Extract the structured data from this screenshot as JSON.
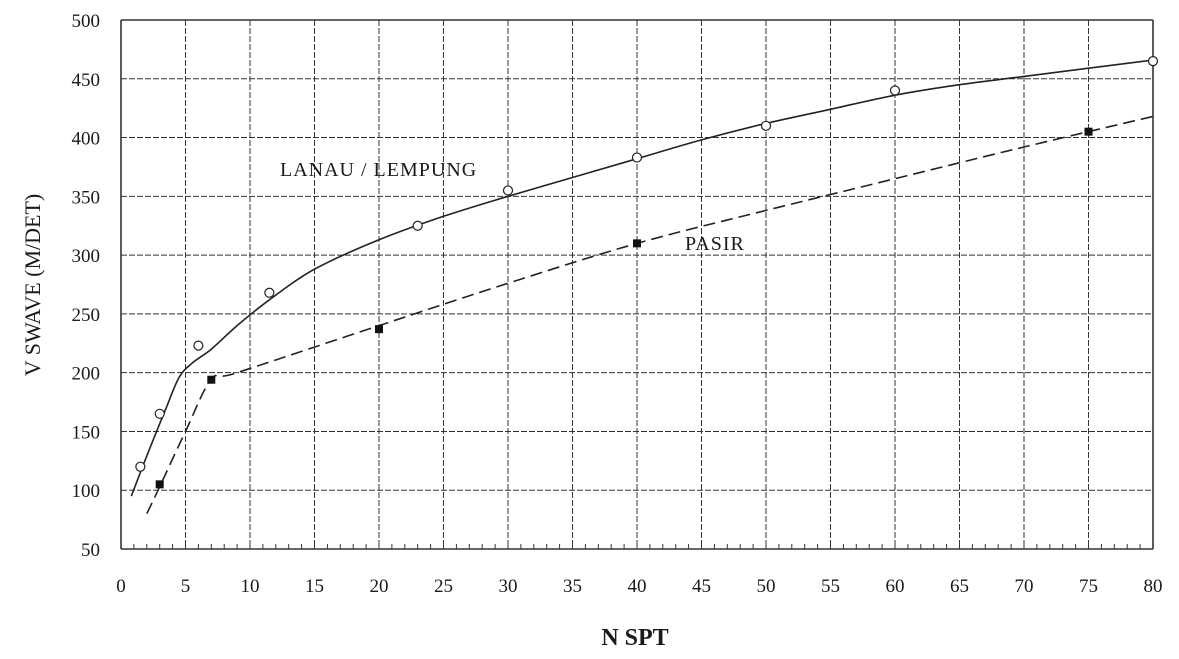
{
  "chart_data": {
    "type": "line",
    "title": "",
    "xlabel": "N SPT",
    "ylabel": "V SWAVE (M/DET)",
    "xlim": [
      0,
      80
    ],
    "ylim": [
      50,
      500
    ],
    "xticks": [
      0,
      5,
      10,
      15,
      20,
      25,
      30,
      35,
      40,
      45,
      50,
      55,
      60,
      65,
      70,
      75,
      80
    ],
    "yticks": [
      50,
      100,
      150,
      200,
      250,
      300,
      350,
      400,
      450,
      500
    ],
    "grid": true,
    "series": [
      {
        "name": "LANAU / LEMPUNG",
        "line_style": "solid",
        "marker": "open-circle",
        "points": [
          [
            1.5,
            120
          ],
          [
            3,
            165
          ],
          [
            6,
            223
          ],
          [
            11.5,
            268
          ],
          [
            23,
            325
          ],
          [
            30,
            355
          ],
          [
            40,
            383
          ],
          [
            50,
            410
          ],
          [
            60,
            440
          ],
          [
            80,
            465
          ]
        ],
        "curve": [
          [
            0.8,
            95
          ],
          [
            1.5,
            115
          ],
          [
            2.5,
            143
          ],
          [
            3.5,
            170
          ],
          [
            4.5,
            196
          ],
          [
            5.5,
            208
          ],
          [
            7,
            220
          ],
          [
            9,
            240
          ],
          [
            11.5,
            262
          ],
          [
            15,
            288
          ],
          [
            20,
            313
          ],
          [
            25,
            333
          ],
          [
            30,
            350
          ],
          [
            35,
            366
          ],
          [
            40,
            382
          ],
          [
            45,
            398
          ],
          [
            50,
            412
          ],
          [
            55,
            424
          ],
          [
            60,
            436
          ],
          [
            65,
            445
          ],
          [
            70,
            452
          ],
          [
            75,
            459
          ],
          [
            80,
            466
          ]
        ]
      },
      {
        "name": "PASIR",
        "line_style": "dashed",
        "marker": "filled-square",
        "points": [
          [
            3,
            105
          ],
          [
            7,
            194
          ],
          [
            20,
            237
          ],
          [
            40,
            310
          ],
          [
            75,
            405
          ]
        ],
        "curve": [
          [
            2,
            80
          ],
          [
            3,
            103
          ],
          [
            5,
            150
          ],
          [
            7,
            194
          ],
          [
            9,
            200
          ],
          [
            20,
            240
          ],
          [
            30,
            276
          ],
          [
            40,
            310
          ],
          [
            50,
            338
          ],
          [
            60,
            365
          ],
          [
            70,
            392
          ],
          [
            80,
            418
          ]
        ]
      }
    ]
  }
}
